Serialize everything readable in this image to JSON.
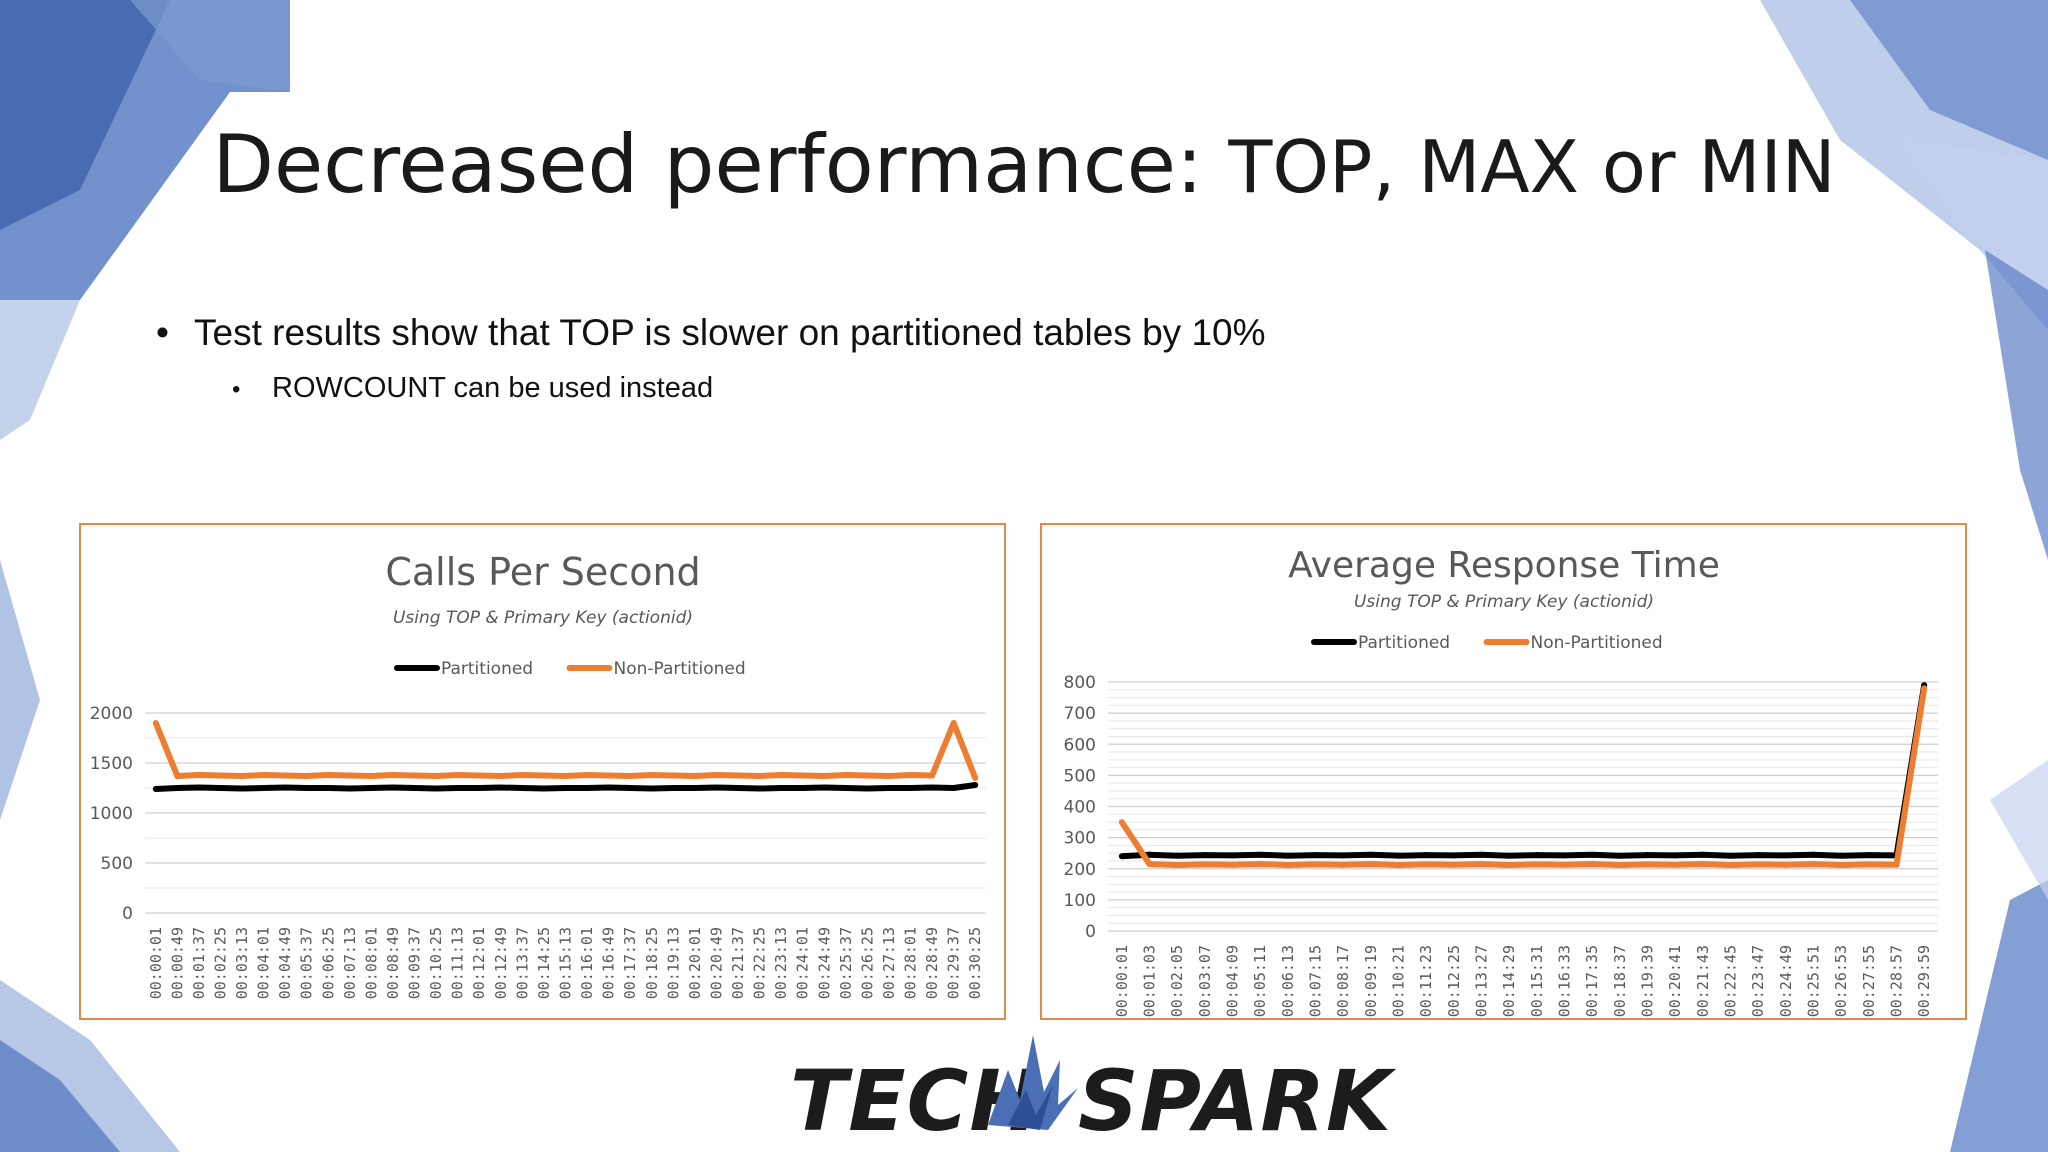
{
  "slide": {
    "title_main": "Decreased performance: ",
    "title_rest": "TOP, MAX or MIN",
    "bullet_1": "Test results show that TOP is slower on partitioned tables by 10%",
    "bullet_2": "ROWCOUNT can be used instead",
    "logo_left": "TECH",
    "logo_right": "SPARK"
  },
  "colors": {
    "partitioned": "#000000",
    "non_partitioned": "#ed7d31",
    "frame": "#e08a4a",
    "background_accent": "#4a6fb5"
  },
  "chart_data": [
    {
      "type": "line",
      "title": "Calls Per Second",
      "subtitle": "Using TOP & Primary Key (actionid)",
      "xlabel": "",
      "ylabel": "",
      "ylim": [
        0,
        2000
      ],
      "yticks": [
        0,
        500,
        1000,
        1500,
        2000
      ],
      "legend_position": "top",
      "grid": true,
      "x": [
        "00:00:01",
        "00:00:49",
        "00:01:37",
        "00:02:25",
        "00:03:13",
        "00:04:01",
        "00:04:49",
        "00:05:37",
        "00:06:25",
        "00:07:13",
        "00:08:01",
        "00:08:49",
        "00:09:37",
        "00:10:25",
        "00:11:13",
        "00:12:01",
        "00:12:49",
        "00:13:37",
        "00:14:25",
        "00:15:13",
        "00:16:01",
        "00:16:49",
        "00:17:37",
        "00:18:25",
        "00:19:13",
        "00:20:01",
        "00:20:49",
        "00:21:37",
        "00:22:25",
        "00:23:13",
        "00:24:01",
        "00:24:49",
        "00:25:37",
        "00:26:25",
        "00:27:13",
        "00:28:01",
        "00:28:49",
        "00:29:37",
        "00:30:25"
      ],
      "series": [
        {
          "name": "Partitioned",
          "values": [
            1240,
            1250,
            1255,
            1250,
            1245,
            1250,
            1255,
            1250,
            1250,
            1245,
            1250,
            1255,
            1250,
            1245,
            1250,
            1250,
            1255,
            1250,
            1245,
            1250,
            1250,
            1255,
            1250,
            1245,
            1250,
            1250,
            1255,
            1250,
            1245,
            1250,
            1250,
            1255,
            1250,
            1245,
            1250,
            1250,
            1255,
            1250,
            1280
          ]
        },
        {
          "name": "Non-Partitioned",
          "values": [
            1900,
            1370,
            1380,
            1375,
            1370,
            1380,
            1375,
            1370,
            1380,
            1375,
            1370,
            1380,
            1375,
            1370,
            1380,
            1375,
            1370,
            1380,
            1375,
            1370,
            1380,
            1375,
            1370,
            1380,
            1375,
            1370,
            1380,
            1375,
            1370,
            1380,
            1375,
            1370,
            1380,
            1375,
            1370,
            1380,
            1375,
            1900,
            1350
          ]
        }
      ]
    },
    {
      "type": "line",
      "title": "Average Response Time",
      "subtitle": "Using TOP & Primary Key (actionid)",
      "xlabel": "",
      "ylabel": "",
      "ylim": [
        0,
        800
      ],
      "yticks": [
        0,
        100,
        200,
        300,
        400,
        500,
        600,
        700,
        800
      ],
      "legend_position": "top",
      "grid": true,
      "x": [
        "00:00:01",
        "00:01:03",
        "00:02:05",
        "00:03:07",
        "00:04:09",
        "00:05:11",
        "00:06:13",
        "00:07:15",
        "00:08:17",
        "00:09:19",
        "00:10:21",
        "00:11:23",
        "00:12:25",
        "00:13:27",
        "00:14:29",
        "00:15:31",
        "00:16:33",
        "00:17:35",
        "00:18:37",
        "00:19:39",
        "00:20:41",
        "00:21:43",
        "00:22:45",
        "00:23:47",
        "00:24:49",
        "00:25:51",
        "00:26:53",
        "00:27:55",
        "00:28:57",
        "00:29:59"
      ],
      "series": [
        {
          "name": "Partitioned",
          "values": [
            240,
            245,
            242,
            244,
            243,
            245,
            242,
            244,
            243,
            245,
            242,
            244,
            243,
            245,
            242,
            244,
            243,
            245,
            242,
            244,
            243,
            245,
            242,
            244,
            243,
            245,
            242,
            244,
            243,
            790
          ]
        },
        {
          "name": "Non-Partitioned",
          "values": [
            350,
            215,
            212,
            214,
            213,
            215,
            212,
            214,
            213,
            215,
            212,
            214,
            213,
            215,
            212,
            214,
            213,
            215,
            212,
            214,
            213,
            215,
            212,
            214,
            213,
            215,
            212,
            214,
            213,
            780
          ]
        }
      ]
    }
  ]
}
